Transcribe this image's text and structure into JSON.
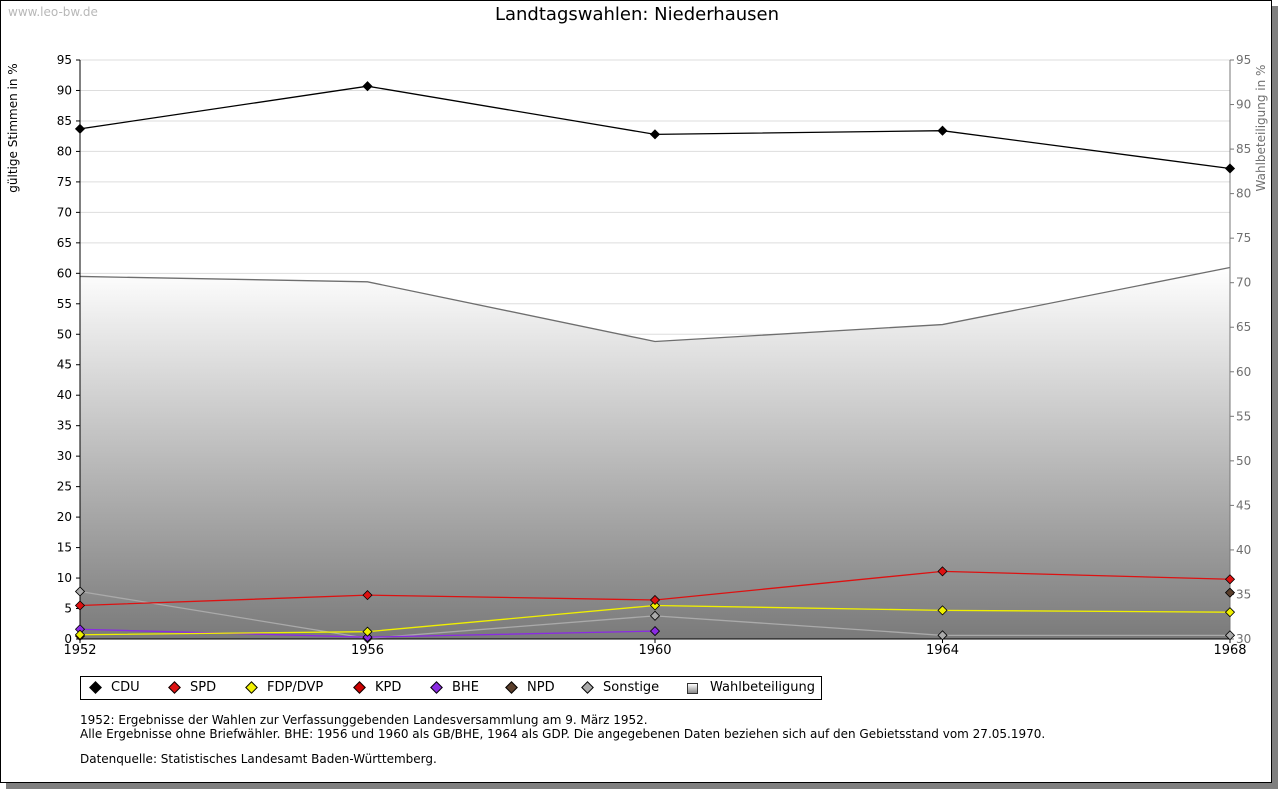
{
  "watermark": "www.leo-bw.de",
  "chart_data": {
    "type": "line",
    "title": "Landtagswahlen: Niederhausen",
    "ylabel": "gültige Stimmen in %",
    "y2label": "Wahlbeteiligung in %",
    "x": [
      1952,
      1956,
      1960,
      1964,
      1968
    ],
    "ylim": [
      0,
      95
    ],
    "yticks": [
      0,
      5,
      10,
      15,
      20,
      25,
      30,
      35,
      40,
      45,
      50,
      55,
      60,
      65,
      70,
      75,
      80,
      85,
      90,
      95
    ],
    "y2lim": [
      30,
      95
    ],
    "y2ticks": [
      30,
      35,
      40,
      45,
      50,
      55,
      60,
      65,
      70,
      75,
      80,
      85,
      90,
      95
    ],
    "grid": true,
    "series": [
      {
        "name": "CDU",
        "color": "#000000",
        "values": [
          83.7,
          90.7,
          82.8,
          83.4,
          77.2
        ]
      },
      {
        "name": "SPD",
        "color": "#dd1111",
        "values": [
          5.5,
          7.2,
          6.4,
          11.1,
          9.8
        ]
      },
      {
        "name": "FDP/DVP",
        "color": "#f0f000",
        "values": [
          0.7,
          1.2,
          5.5,
          4.7,
          4.4
        ]
      },
      {
        "name": "KPD",
        "color": "#cc0000",
        "values": [
          0.5,
          null,
          null,
          null,
          null
        ]
      },
      {
        "name": "BHE",
        "color": "#8a2be2",
        "values": [
          1.6,
          0.3,
          1.3,
          null,
          null
        ]
      },
      {
        "name": "NPD",
        "color": "#5a3e2b",
        "values": [
          null,
          null,
          null,
          null,
          7.6
        ]
      },
      {
        "name": "Sonstige",
        "color": "#aaaaaa",
        "values": [
          7.8,
          0.1,
          3.8,
          0.6,
          0.6
        ]
      }
    ],
    "turnout": {
      "name": "Wahlbeteiligung",
      "axis": "right",
      "values": [
        70.7,
        70.1,
        63.4,
        65.3,
        71.7
      ]
    }
  },
  "legend_layout": "bottom",
  "notes": [
    "1952: Ergebnisse der Wahlen zur Verfassunggebenden Landesversammlung am 9. März 1952.",
    "Alle Ergebnisse ohne Briefwähler. BHE: 1956 und 1960 als GB/BHE, 1964 als GDP. Die angegebenen Daten beziehen sich auf den Gebietsstand vom 27.05.1970."
  ],
  "source": "Datenquelle: Statistisches Landesamt Baden-Württemberg."
}
